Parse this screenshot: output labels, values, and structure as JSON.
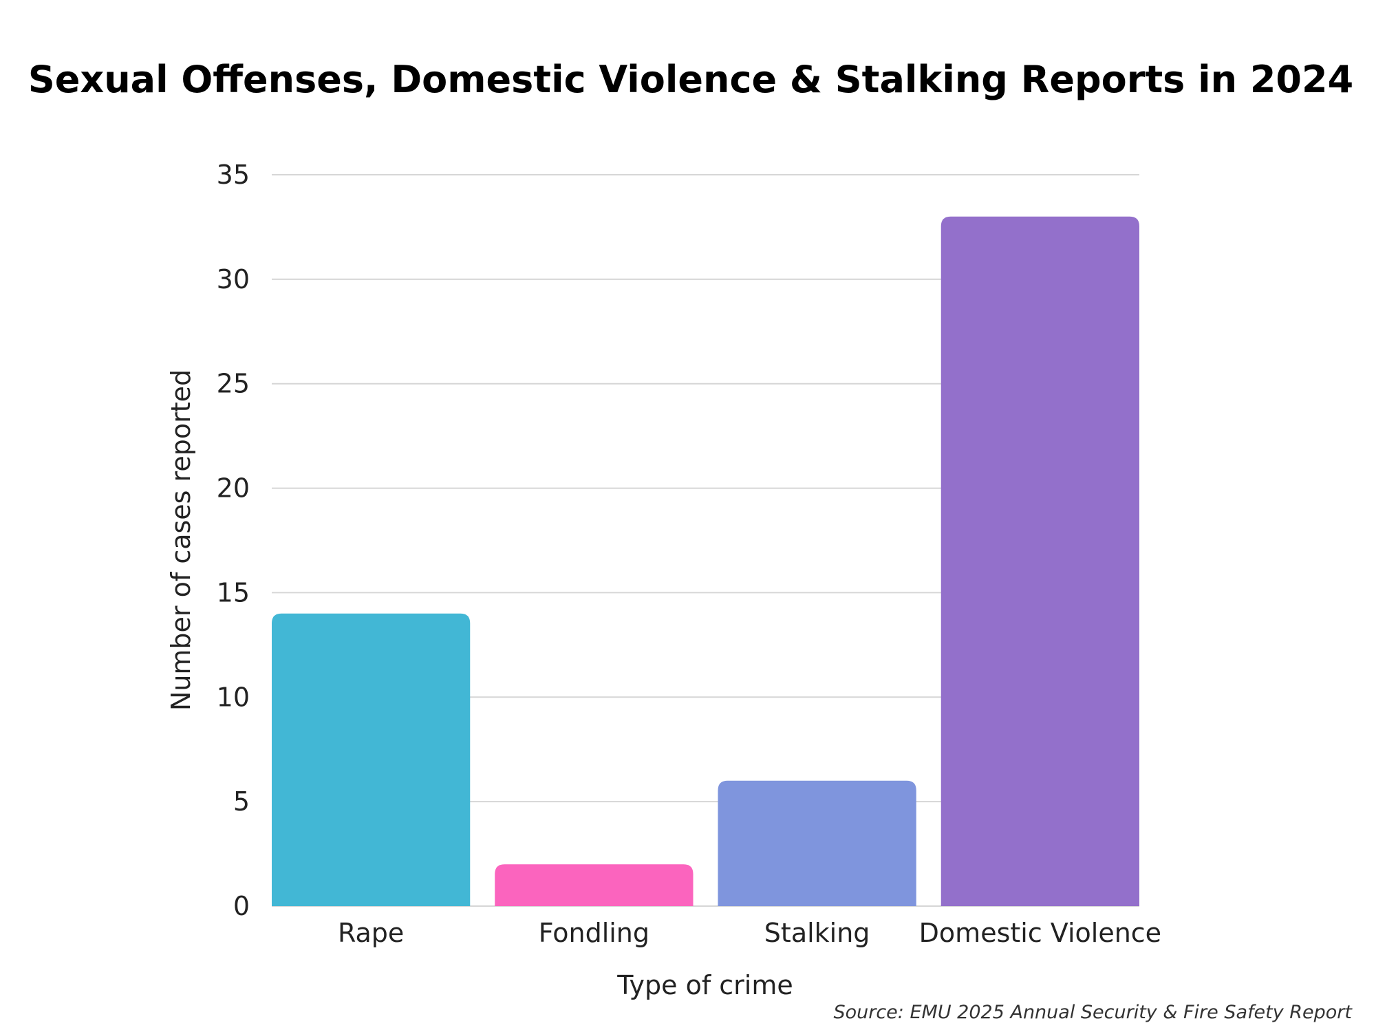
{
  "chart_data": {
    "type": "bar",
    "title": "Sexual Offenses, Domestic Violence & Stalking Reports in 2024",
    "xlabel": "Type of crime",
    "ylabel": "Number of cases reported",
    "categories": [
      "Rape",
      "Fondling",
      "Stalking",
      "Domestic Violence"
    ],
    "values": [
      14,
      2,
      6,
      33
    ],
    "colors": [
      "#42B7D5",
      "#FB64BE",
      "#7F95DD",
      "#9370CB"
    ],
    "ylim": [
      0,
      35
    ],
    "yticks": [
      "0",
      "5",
      "10",
      "15",
      "20",
      "25",
      "30",
      "35"
    ],
    "grid": true,
    "source": "Source: EMU 2025 Annual Security & Fire Safety Report"
  }
}
